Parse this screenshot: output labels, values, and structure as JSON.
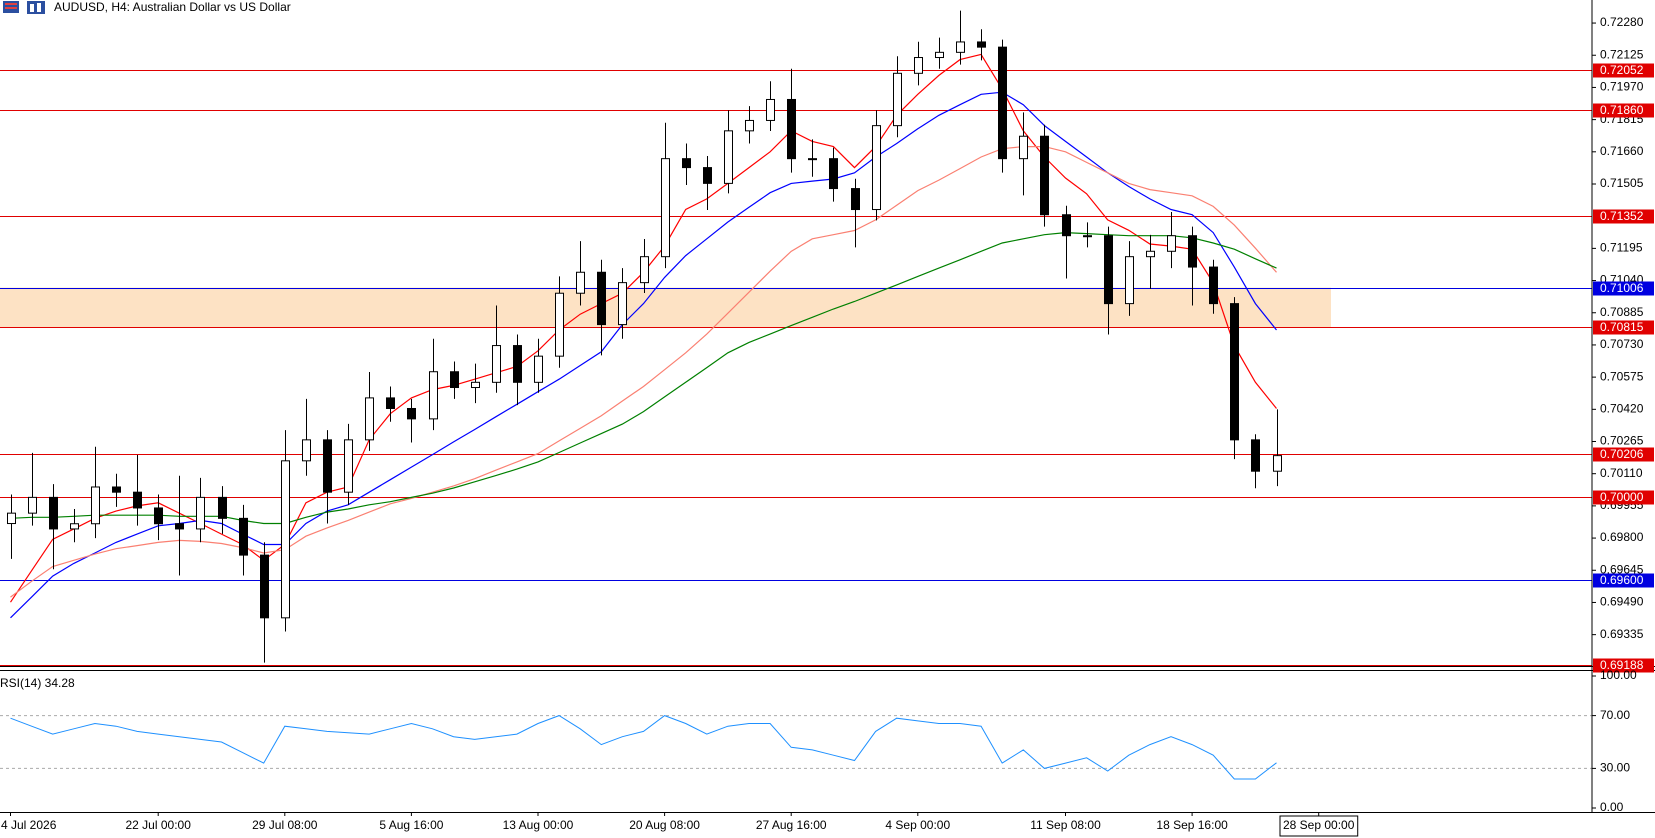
{
  "chart_data": [
    {
      "type": "candlestick",
      "title": "AUDUSD, H4:  Australian Dollar vs US Dollar",
      "categories": [
        "4 Jul 2026",
        null,
        null,
        null,
        null,
        null,
        null,
        "22 Jul 00:00",
        null,
        null,
        null,
        null,
        null,
        "29 Jul 08:00",
        null,
        null,
        null,
        null,
        null,
        "5 Aug 16:00",
        null,
        null,
        null,
        null,
        null,
        "13 Aug 00:00",
        null,
        null,
        null,
        null,
        null,
        "20 Aug 08:00",
        null,
        null,
        null,
        null,
        null,
        "27 Aug 16:00",
        null,
        null,
        null,
        null,
        null,
        "4 Sep 00:00",
        null,
        null,
        null,
        null,
        null,
        null,
        "11 Sep 08:00",
        null,
        null,
        null,
        null,
        null,
        "18 Sep 16:00",
        null,
        null,
        null,
        null,
        null,
        "28 Sep 00:00"
      ],
      "open": [
        0.6987,
        0.6992,
        0.69996,
        0.69844,
        0.69869,
        0.70046,
        0.70021,
        0.69945,
        0.69869,
        0.69844,
        0.69996,
        0.69895,
        0.69718,
        0.69416,
        0.70172,
        0.70273,
        0.70021,
        0.70273,
        0.70475,
        0.70424,
        0.70374,
        0.70601,
        0.70525,
        0.7055,
        0.70727,
        0.7055,
        0.70676,
        0.70979,
        0.7108,
        0.70828,
        0.7103,
        0.71155,
        0.71627,
        0.71584,
        0.71508,
        0.71761,
        0.71811,
        0.71912,
        0.71627,
        0.71627,
        0.71483,
        0.71382,
        0.71786,
        0.72038,
        0.72114,
        0.72139,
        0.72189,
        0.72164,
        0.71627,
        0.71735,
        0.71357,
        0.71256,
        0.71256,
        0.70929,
        0.71155,
        0.71181,
        0.71256,
        0.71105,
        0.70929,
        0.70273,
        0.70122,
        null,
        null
      ],
      "high": [
        0.7001,
        0.7021,
        0.7006,
        0.6994,
        0.7024,
        0.7011,
        0.702,
        0.7001,
        0.701,
        0.7009,
        0.7005,
        0.6996,
        0.6978,
        0.7032,
        0.7047,
        0.7032,
        0.7035,
        0.706,
        0.7053,
        0.7047,
        0.7076,
        0.7065,
        0.7064,
        0.7092,
        0.7078,
        0.7076,
        0.7106,
        0.7123,
        0.7114,
        0.711,
        0.7124,
        0.718,
        0.717,
        0.7164,
        0.7186,
        0.7188,
        0.72,
        0.7206,
        0.7172,
        0.7168,
        0.7153,
        0.7186,
        0.7212,
        0.7219,
        0.7221,
        0.7234,
        0.7225,
        0.722,
        0.7185,
        0.7179,
        0.714,
        0.7132,
        0.713,
        0.7123,
        0.7126,
        0.7137,
        0.713,
        0.7114,
        0.7096,
        0.703,
        0.7042,
        null,
        null
      ],
      "low": [
        0.697,
        0.6986,
        0.6965,
        0.6978,
        0.698,
        0.6995,
        0.6986,
        0.6979,
        0.6962,
        0.6978,
        0.6982,
        0.6962,
        0.692,
        0.6935,
        0.701,
        0.6987,
        0.6996,
        0.7022,
        0.7036,
        0.7026,
        0.7032,
        0.7047,
        0.7045,
        0.705,
        0.7044,
        0.705,
        0.7062,
        0.7092,
        0.7068,
        0.7076,
        0.7098,
        0.711,
        0.715,
        0.7138,
        0.7146,
        0.717,
        0.7176,
        0.7156,
        0.7154,
        0.7142,
        0.712,
        0.7133,
        0.7173,
        0.7198,
        0.7206,
        0.7208,
        0.721,
        0.7156,
        0.7145,
        0.713,
        0.7105,
        0.712,
        0.7078,
        0.7087,
        0.71,
        0.711,
        0.7092,
        0.7088,
        0.7018,
        0.7004,
        0.7005,
        null,
        null
      ],
      "close": [
        0.6992,
        0.69996,
        0.69844,
        0.69869,
        0.70046,
        0.70021,
        0.69945,
        0.69869,
        0.69844,
        0.69996,
        0.69895,
        0.69718,
        0.69416,
        0.70172,
        0.70273,
        0.70021,
        0.70273,
        0.70475,
        0.70424,
        0.70374,
        0.70601,
        0.70525,
        0.7055,
        0.70727,
        0.7055,
        0.70676,
        0.70979,
        0.7108,
        0.70828,
        0.7103,
        0.71155,
        0.71627,
        0.71584,
        0.71508,
        0.71761,
        0.71811,
        0.71912,
        0.71627,
        0.71627,
        0.71483,
        0.71382,
        0.71786,
        0.72038,
        0.72114,
        0.72139,
        0.72189,
        0.72164,
        0.71627,
        0.71735,
        0.71357,
        0.71256,
        0.71256,
        0.70929,
        0.71155,
        0.71181,
        0.71256,
        0.71105,
        0.70929,
        0.70273,
        0.70122,
        0.70197,
        null,
        null
      ],
      "bull_color": "#ffffff",
      "bear_color": "#000000",
      "wick_color": "#000000",
      "series": [
        {
          "color": "#ff0000",
          "values": [
            0.69491,
            0.69643,
            0.69794,
            0.69844,
            0.69895,
            0.6993,
            0.69955,
            0.6997,
            0.6992,
            0.6987,
            0.69819,
            0.69769,
            0.69693,
            0.69769,
            0.6997,
            0.70021,
            0.70046,
            0.70273,
            0.70399,
            0.70475,
            0.70515,
            0.70535,
            0.70565,
            0.70596,
            0.70626,
            0.70702,
            0.70802,
            0.70878,
            0.70929,
            0.70979,
            0.7108,
            0.71206,
            0.71382,
            0.71433,
            0.71508,
            0.71584,
            0.7166,
            0.71761,
            0.7171,
            0.71685,
            0.71584,
            0.71685,
            0.71836,
            0.71937,
            0.72028,
            0.72104,
            0.72129,
            0.71962,
            0.71761,
            0.71635,
            0.71534,
            0.71458,
            0.71332,
            0.71282,
            0.71216,
            0.71206,
            0.71191,
            0.71029,
            0.70727,
            0.7055,
            0.70424,
            null,
            null
          ]
        },
        {
          "color": "#0000ff",
          "values": [
            0.69416,
            0.69516,
            0.69617,
            0.69678,
            0.69728,
            0.69779,
            0.69819,
            0.69859,
            0.6987,
            0.69885,
            0.6987,
            0.69819,
            0.69769,
            0.69769,
            0.6987,
            0.6993,
            0.6996,
            0.70021,
            0.70081,
            0.70142,
            0.70202,
            0.70263,
            0.70323,
            0.70384,
            0.70444,
            0.70505,
            0.70565,
            0.70631,
            0.70697,
            0.70828,
            0.70929,
            0.71055,
            0.7116,
            0.71241,
            0.71322,
            0.71393,
            0.71463,
            0.71508,
            0.71519,
            0.71529,
            0.71559,
            0.71635,
            0.717,
            0.71771,
            0.71836,
            0.71887,
            0.71937,
            0.71947,
            0.71887,
            0.71786,
            0.7171,
            0.71635,
            0.71559,
            0.71493,
            0.71433,
            0.71382,
            0.71357,
            0.71271,
            0.71105,
            0.70929,
            0.70802,
            null,
            null
          ]
        },
        {
          "color": "#fa8072",
          "values": [
            0.69516,
            0.69592,
            0.69663,
            0.69693,
            0.69723,
            0.69749,
            0.69764,
            0.69779,
            0.69789,
            0.69784,
            0.69774,
            0.69754,
            0.69728,
            0.69744,
            0.69809,
            0.69849,
            0.69885,
            0.69925,
            0.69965,
            0.69991,
            0.70021,
            0.70051,
            0.70086,
            0.70127,
            0.70167,
            0.70207,
            0.70268,
            0.70328,
            0.70389,
            0.7046,
            0.7053,
            0.70611,
            0.70692,
            0.70782,
            0.70883,
            0.70984,
            0.71085,
            0.71181,
            0.71241,
            0.71261,
            0.71281,
            0.71332,
            0.71403,
            0.71473,
            0.71524,
            0.71579,
            0.71635,
            0.71675,
            0.71685,
            0.71685,
            0.7166,
            0.71609,
            0.71559,
            0.71508,
            0.71478,
            0.71463,
            0.71448,
            0.71397,
            0.71307,
            0.71196,
            0.7108,
            null,
            null
          ]
        },
        {
          "color": "#008000",
          "values": [
            0.69895,
            0.699,
            0.699,
            0.69905,
            0.6991,
            0.6991,
            0.6991,
            0.6991,
            0.69905,
            0.69905,
            0.69905,
            0.69885,
            0.6987,
            0.6987,
            0.699,
            0.69925,
            0.6994,
            0.6996,
            0.69975,
            0.69996,
            0.70016,
            0.70041,
            0.70071,
            0.70101,
            0.70132,
            0.70167,
            0.70212,
            0.70258,
            0.70303,
            0.70349,
            0.70409,
            0.7048,
            0.7055,
            0.70621,
            0.70692,
            0.70742,
            0.70782,
            0.70823,
            0.70863,
            0.70903,
            0.70939,
            0.70979,
            0.71019,
            0.7106,
            0.711,
            0.7114,
            0.71181,
            0.71221,
            0.71241,
            0.71261,
            0.71271,
            0.71266,
            0.71261,
            0.71256,
            0.71256,
            0.71256,
            0.71246,
            0.71221,
            0.71191,
            0.71145,
            0.711,
            null,
            null
          ]
        }
      ],
      "zone": {
        "from": 0.70815,
        "to": 0.71006,
        "color": "#fde2c4"
      },
      "levels": [
        {
          "value": 0.72052,
          "label": "0.72052",
          "color": "#e00000"
        },
        {
          "value": 0.7186,
          "label": "0.71860",
          "color": "#e00000"
        },
        {
          "value": 0.71352,
          "label": "0.71352",
          "color": "#e00000"
        },
        {
          "value": 0.71006,
          "label": "0.71006",
          "color": "#0000e0"
        },
        {
          "value": 0.70815,
          "label": "0.70815",
          "color": "#e00000"
        },
        {
          "value": 0.70206,
          "label": "0.70206",
          "color": "#e00000"
        },
        {
          "value": 0.7,
          "label": "0.70000",
          "color": "#e00000"
        },
        {
          "value": 0.696,
          "label": "0.69600",
          "color": "#0000e0"
        },
        {
          "value": 0.69188,
          "label": "0.69188",
          "color": "#e00000"
        }
      ],
      "ylim": [
        0.69184,
        0.72391
      ],
      "yticks": [
        {
          "value": 0.7228,
          "label": "0.72280"
        },
        {
          "value": 0.72125,
          "label": "0.72125"
        },
        {
          "value": 0.7197,
          "label": "0.71970"
        },
        {
          "value": 0.71815,
          "label": "0.71815"
        },
        {
          "value": 0.7166,
          "label": "0.71660"
        },
        {
          "value": 0.71505,
          "label": "0.71505"
        },
        {
          "value": 0.71195,
          "label": "0.71195"
        },
        {
          "value": 0.7104,
          "label": "0.71040"
        },
        {
          "value": 0.70885,
          "label": "0.70885"
        },
        {
          "value": 0.7073,
          "label": "0.70730"
        },
        {
          "value": 0.70575,
          "label": "0.70575"
        },
        {
          "value": 0.7042,
          "label": "0.70420"
        },
        {
          "value": 0.70265,
          "label": "0.70265"
        },
        {
          "value": 0.7011,
          "label": "0.70110"
        },
        {
          "value": 0.69955,
          "label": "0.69955"
        },
        {
          "value": 0.698,
          "label": "0.69800"
        },
        {
          "value": 0.69645,
          "label": "0.69645"
        },
        {
          "value": 0.6949,
          "label": "0.69490"
        },
        {
          "value": 0.69335,
          "label": "0.69335"
        }
      ]
    },
    {
      "type": "line",
      "title": "RSI(14) 34.28",
      "color": "#1e90ff",
      "values": [
        68,
        62,
        56,
        60,
        64,
        62,
        58,
        56,
        54,
        52,
        50,
        42,
        34,
        62,
        60,
        58,
        57,
        56,
        60,
        64,
        60,
        54,
        52,
        54,
        56,
        64,
        70,
        60,
        48,
        54,
        58,
        70,
        64,
        56,
        62,
        64,
        64,
        46,
        44,
        40,
        36,
        58,
        68,
        66,
        64,
        64,
        62,
        34,
        44,
        30,
        34,
        38,
        28,
        40,
        48,
        54,
        48,
        40,
        22,
        22,
        34.28,
        null,
        null
      ],
      "ylim": [
        0,
        100
      ],
      "yticks": [
        {
          "value": 100,
          "label": "100.00"
        },
        {
          "value": 70,
          "label": "70.00"
        },
        {
          "value": 30,
          "label": "30.00"
        },
        {
          "value": 0,
          "label": "0.00"
        }
      ],
      "grid_style": "dashed"
    }
  ]
}
